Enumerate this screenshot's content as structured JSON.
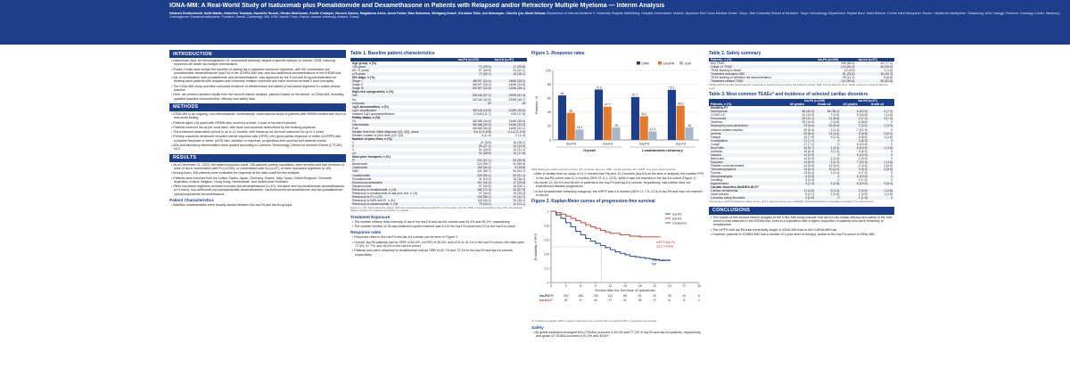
{
  "header": {
    "title": "IONA-MM: A Real-World Study of Isatuximab plus Pomalidomide and Dexamethasone in Patients with Relapsed and/or Refractory Multiple Myeloma — Interim Analysis",
    "authors": "Hartmut Goldschmidt, Sofia Martin, Nobuhiro Tsukada, Kazuhito Suzuki, Hiroko Hashimoto, Emilie Chalayer, Vincent Camus, Magdalena Alexe, Anna Furlan, Max Hubmann, Wolfgang Knauf, Christina Tekle, Ani Mousayan, Chunfu Qiu, Meral Beksac",
    "affiliations": "Department of Internal Medicine V, University Hospital Heidelberg; Hospital Universitario, Madrid; Japanese Red Cross Medical Center, Tokyo; Jikei University School of Medicine, Tokyo; Hematology Department, Hôpital Nord, Saint-Étienne; Centre Henri Becquerel, Rouen; Hôpital de Hautepierre, Strasbourg; AOU Careggi, Florence; Oncology Center, Hamburg; Onkologische Gemeinschaftspraxis, Frankfurt; Sanofi, Cambridge, MA, USA; Sanofi, Paris, France; Ankara University, Ankara, Turkey"
  },
  "intro": {
    "heading": "INTRODUCTION",
    "bullets": [
      "Isatuximab (Isa), an immunoglobulin G1 monoclonal antibody, targets a specific epitope on human CD38, inducing myeloma cell death via multiple mechanisms",
      "Phase 3 trials have shown the benefits of adding Isa to standard backbone regimens, with the combination Isa-pomalidomide-dexamethasone (Isa-Pd) in the ICARIA-MM trial, and Isa-carfilzomib-dexamethasone in the IKEMA trial",
      "Isa, in combination with pomalidomide and dexamethasone, was approved by the Food and Drug Administration for treating adult patients with relapsed and refractory multiple myeloma who have received at least 2 prior therapies",
      "The IONA-MM study provides real-world evidence of effectiveness and safety of Isa-based regimens in routine clinical practice",
      "Here, we present updated results from the second interim analysis, planned based on enrolment, of IONA-MM, including updated baseline characteristics, efficacy and safety data"
    ]
  },
  "methods": {
    "heading": "METHODS",
    "bullets": [
      "IONA-MM is an ongoing, non-interventional, multinational, observational study of patients with RRMM treated with Isa in a real-world setting",
      "Patients aged ≥18 years with RRMM who received at least 1 dose of Isa were included",
      "Patients received Isa as per local label, with dose and schedule determined by the treating physician",
      "The treatment observation period is up to 12 months, with follow-up for survival outcomes for up to 3 years",
      "Primary outcomes measured included overall response rate (ORR), very good partial response or better (≥VGPR) rate, complete response or better (≥CR) rate, duration of response, progression-free survival and adverse events",
      "AEs and laboratory abnormalities were graded according to Common Terminology Criteria for Adverse Events (CTCAE) v5.0"
    ]
  },
  "results": {
    "heading": "RESULTS",
    "bullets": [
      "As of December 31, 2022, the patient inclusion cutoff, 336 patients (safety population) were enrolled and had received ≥1 dose of Isa in combination with Pd (n=239), or combination with Kd (n=57), or other Isa-based regimens (n=40)",
      "Among them, 306 patients were evaluable for response at the data cutoff for this analysis",
      "Patients were enrolled from the United States, Japan, Germany, France, Italy, Spain, United Kingdom, Denmark, Argentina, Austria, Belgium, Hong Kong, Netherlands, and United Arab Emirates",
      "Other Isa-based regimens received included Isa-dexamethasone (n=10), Isa alone and Isa-lenalidomide-dexamethasone (n=9 each), Isa-carfilzomib-cyclophosphamide-dexamethasone, Isa-bortezomib-dexamethasone and Isa-pomalidomide-cyclophosphamide-dexamethasone"
    ],
    "sub": "Patient Characteristics",
    "sub_text": "Baseline characteristics were broadly similar between the Isa-Pd and Isa-Kd groups"
  },
  "table1": {
    "caption": "Table 1. Baseline patient characteristics",
    "headers": [
      "",
      "Isa-Pd (n=239)",
      "Isa-Kd (n=57)"
    ],
    "rows": [
      [
        "Age group, n (%)",
        "",
        ""
      ],
      [
        "<65 years",
        "70 (29.3)",
        "17 (29.8)"
      ],
      [
        "65–74 years",
        "97 (40.6)",
        "24 (42.1)"
      ],
      [
        "≥75 years",
        "72 (30.1)",
        "16 (28.1)"
      ],
      [
        "ISS stage, n (%)",
        "",
        ""
      ],
      [
        "Stage I",
        "48/197 (24.4)",
        "18/46 (39.1)"
      ],
      [
        "Stage II",
        "65/197 (33.0)",
        "16/46 (34.8)"
      ],
      [
        "Stage III",
        "84/197 (42.6)",
        "12/46 (26.1)"
      ],
      [
        "High-risk cytogenetics, n (%)",
        "",
        ""
      ],
      [
        "Yes",
        "83/145 (57.2)",
        "20/39 (51.3)"
      ],
      [
        "No",
        "62/145 (42.8)",
        "19/39 (48.7)"
      ],
      [
        "Unknown",
        "94",
        "18"
      ],
      [
        "1q21 abnormalities, n (%)",
        "",
        ""
      ],
      [
        "1q21 amplification",
        "36/145 (24.8)",
        "10/39 (25.6)"
      ],
      [
        "Isolated 1q21 gain/amplification",
        "17/145 (11.7)",
        "7/39 (17.9)"
      ],
      [
        "Frailty status, n (%)",
        "",
        ""
      ],
      [
        "Fit",
        "65/188 (34.6)",
        "16/45 (35.6)"
      ],
      [
        "Intermediate",
        "58/188 (30.9)",
        "15/45 (33.3)"
      ],
      [
        "Frail",
        "65/188 (34.6)",
        "14/45 (31.1)"
      ],
      [
        "Median time from initial diagnosis (Q1–Q3), years",
        "5.6 (3.4–8.8)",
        "4.1 (2.2–6.9)"
      ],
      [
        "Median number of prior lines (Q1–Q3)",
        "3 (2–4)",
        "2 (1–3)"
      ],
      [
        "Number of prior lines, n (%)",
        "",
        ""
      ],
      [
        "1",
        "21 (8.8)",
        "16 (28.1)"
      ],
      [
        "2",
        "65 (27.2)",
        "19 (33.3)"
      ],
      [
        "3",
        "61 (25.5)",
        "12 (21.1)"
      ],
      [
        "≥4",
        "92 (38.5)",
        "10 (17.5)"
      ],
      [
        "Most prior therapies, n (%)",
        "",
        ""
      ],
      [
        "PI",
        "232 (97.1)",
        "53 (93.0)"
      ],
      [
        "Bortezomib",
        "224 (93.7)",
        "51 (89.5)"
      ],
      [
        "Carfilzomib",
        "106 (44.4)",
        "9 (15.8)"
      ],
      [
        "IMiD",
        "231 (96.7)",
        "54 (94.7)"
      ],
      [
        "Lenalidomide",
        "225 (94.1)",
        "52 (91.2)"
      ],
      [
        "Pomalidomide",
        "31 (13.0)",
        "15 (26.3)"
      ],
      [
        "Monoclonal antibodies",
        "101 (42.3)",
        "17 (29.8)"
      ],
      [
        "Daratumumab",
        "97 (40.6)",
        "16 (28.1)"
      ],
      [
        "Refractory to lenalidomide, n (%)",
        "168 (70.3)",
        "33 (57.9)"
      ],
      [
        "Refractory to lenalidomide at last prior line, n (%)",
        "97 (40.6)",
        "19 (33.3)"
      ],
      [
        "Refractory to PI, n (%)",
        "134 (56.1)",
        "24 (42.1)"
      ],
      [
        "Refractory to IMiD and PI, n (%)",
        "118 (49.4)",
        "20 (35.1)"
      ],
      [
        "Refractory to daratumumab, n (%)",
        "79 (33.1)",
        "12 (21.1)"
      ]
    ],
    "footnote": "Data are n (%) unless otherwise stated. High-risk cytogenetics defined as del(17p), t(4;14) and/or t(14;16). IMiD, immunomodulatory drug; ISS, International Staging System; PI, proteasome inhibitor; Q, quartile."
  },
  "treatment": {
    "heading": "Treatment Exposure",
    "bullets": [
      "The median relative dose intensity of Isa in the Isa-Pd and Isa-Kd cohorts was 94.4% and 96.2%, respectively",
      "The median number of 28-day treatment cycles received was 8.0 in the Isa-Pd cohort and 9.0 in the Isa-Kd cohort"
    ],
    "resp_heading": "Response rates",
    "resp_bullets": [
      "Response rates in the Isa-Pd and Isa-Kd cohorts can be seen in Figure 1",
      "Overall, Isa-Pd patients had an ORR of 64.0%, ≥VGPR of 39.0%, and ≥CR of 15.1% in the Isa-Pd cohort; the rates were 72.5%, 47.7%, and 18.0% in the Isa-Kd cohort",
      "Patients who were refractory to lenalidomide had an ORR of 61.7% and 72.1% in the Isa-Pd and Isa-Kd cohorts, respectively"
    ]
  },
  "figure1": {
    "caption": "Figure 1. Response rates",
    "chart_data": {
      "type": "bar",
      "categories": [
        "Isa-Pd",
        "Isa-Kd",
        "Isa-Pd",
        "Isa-Kd"
      ],
      "groups": [
        "Overall",
        "Lenalidomide-refractory"
      ],
      "series": [
        {
          "name": "ORR",
          "color": "#1d3f8a",
          "values": [
            64.0,
            72.5,
            61.7,
            72.1
          ]
        },
        {
          "name": "≥VGPR",
          "color": "#e37b2e",
          "values": [
            39.0,
            47.7,
            34.1,
            49.2
          ]
        },
        {
          "name": "≥CR",
          "color": "#a9b6c9",
          "values": [
            15.1,
            18.0,
            12.3,
            18.0
          ]
        }
      ],
      "ylabel": "Patients, %",
      "ylim": [
        0,
        100
      ],
      "yticks": [
        0,
        20,
        40,
        60,
        80,
        100
      ]
    },
    "footnote": "ORR defined as partial response or better. CR, complete response; ORR, overall response rate; VGPR, very good partial response."
  },
  "pfs_text": [
    "After a median time on study of 11.2 months (Isa-Pd) and 12.4 months (Isa-Kd) at the time of analysis, the median PFS in the Isa-Pd cohort was 10.2 months (95% CI: 8.1–13.5), while it was not reached in the Isa-Kd cohort (Figure 2)",
    "At month 12, 45.9% and 68.6% of patients in the Isa-Pd and Isa-Kd cohorts, respectively, had neither died nor experienced disease progression",
    "In the lenalidomide-refractory subgroup, the mPFS was 9.6 months (95% CI: 7.5–13.3) in Isa-Pd and was not reached in Isa-Kd"
  ],
  "figure2": {
    "caption": "Figure 2. Kaplan-Meier curves of progression-free survival",
    "legend": [
      "Isa-Pd",
      "Isa-Kd",
      "Censored"
    ],
    "annotations": [
      "mPFS Isa-Pd",
      "10.2 months",
      "mPFS Isa-Kd",
      "NR"
    ],
    "chart_data": {
      "type": "line",
      "xlabel": "Months after the first dose of Isatuximab",
      "ylabel": "Probability of PFS",
      "xlim": [
        0,
        30
      ],
      "ylim": [
        0,
        1
      ],
      "xticks": [
        0,
        3,
        6,
        9,
        12,
        15,
        18,
        21,
        24,
        27,
        30
      ],
      "yticks": [
        0,
        0.2,
        0.4,
        0.6,
        0.8,
        1.0
      ],
      "series": [
        {
          "name": "Isa-Pd",
          "color": "#1d3f8a",
          "x": [
            0,
            1,
            2,
            3,
            4,
            5,
            6,
            7,
            8,
            9,
            10,
            11,
            12,
            13,
            14,
            15,
            16,
            17,
            18,
            19,
            20,
            21,
            22,
            24
          ],
          "y": [
            1,
            0.95,
            0.9,
            0.84,
            0.78,
            0.72,
            0.67,
            0.62,
            0.58,
            0.55,
            0.52,
            0.49,
            0.46,
            0.43,
            0.41,
            0.39,
            0.37,
            0.36,
            0.35,
            0.34,
            0.33,
            0.32,
            0.31,
            0.31
          ]
        },
        {
          "name": "Isa-Kd",
          "color": "#c0392b",
          "x": [
            0,
            1,
            2,
            3,
            4,
            5,
            6,
            7,
            8,
            9,
            10,
            11,
            12,
            14,
            16,
            18,
            20,
            22
          ],
          "y": [
            1,
            0.98,
            0.96,
            0.93,
            0.9,
            0.87,
            0.84,
            0.81,
            0.78,
            0.76,
            0.73,
            0.71,
            0.69,
            0.67,
            0.65,
            0.64,
            0.64,
            0.64
          ]
        }
      ],
      "at_risk": [
        {
          "name": "Isa-Pd",
          "values": [
            "239",
            "200",
            "166",
            "139",
            "111",
            "89",
            "64",
            "43",
            "28",
            "16",
            "6"
          ]
        },
        {
          "name": "Isa-Kd",
          "values": [
            "57",
            "52",
            "47",
            "42",
            "37",
            "31",
            "25",
            "17",
            "11",
            "6",
            "2"
          ]
        }
      ]
    },
    "footnote": "CI, confidence interval; mPFS, median progression-free survival; NR, not reached; PFS, progression-free survival."
  },
  "safety": {
    "heading": "Safety",
    "bullets": [
      "All-grade treatment-emergent AEs (TEAEs) occurred in 83.3% and 77.2% of Isa-Pd and Isa-Kd patients, respectively, and grade ≥3 TEAEs occurred in 51.9% and 45.6%"
    ]
  },
  "table2": {
    "caption": "Table 2. Safety summary",
    "headers": [
      "Patients, n (%)",
      "Isa-Pd (n=239)",
      "Isa-Kd (n=57)"
    ],
    "rows": [
      [
        "Any TEAE",
        "199 (83.3)",
        "44 (77.2)"
      ],
      [
        "Grade ≥3 TEAE",
        "124 (51.9)",
        "26 (45.6)"
      ],
      [
        "TEAE leading to death",
        "12 (5.0)",
        "1 (1.8)"
      ],
      [
        "Treatment-emergent SAE",
        "81 (33.9)",
        "15 (26.3)"
      ],
      [
        "TEAE leading to definitive Isa discontinuation",
        "29 (12.1)",
        "5 (8.8)"
      ],
      [
        "Treatment-related TEAE",
        "142 (59.4)",
        "30 (52.6)"
      ]
    ],
    "footnote": "TEAEs defined as AEs that developed, worsened or became serious during the treatment period. SAE, serious adverse event; TEAE, treatment-emergent adverse event."
  },
  "table3": {
    "caption": "Table 3. Most common TEAEs* and incidence of selected cardiac disorders",
    "group_headers": [
      "",
      "Isa-Pd (n=239)",
      "Isa-Kd (n=57)"
    ],
    "headers": [
      "Patients, n (%)",
      "All grades",
      "Grade ≥3",
      "All grades",
      "Grade ≥3"
    ],
    "rows": [
      [
        "MedDRA PT",
        "",
        "",
        "",
        ""
      ],
      [
        "Neutropenia",
        "96 (40.2)",
        "84 (35.1)",
        "6 (10.5)",
        "4 (7.0)"
      ],
      [
        "COVID-19",
        "31 (13.0)",
        "7 (2.9)",
        "9 (15.8)",
        "1 (1.8)"
      ],
      [
        "Pneumonia",
        "29 (12.1)",
        "21 (8.8)",
        "4 (7.0)",
        "4 (7.0)"
      ],
      [
        "Diarrhea",
        "25 (10.5)",
        "2 (0.8)",
        "5 (8.8)",
        "0"
      ],
      [
        "Neutrophil count decreased",
        "23 (9.6)",
        "20 (8.4)",
        "2 (3.5)",
        "2 (3.5)"
      ],
      [
        "Infusion-related reaction",
        "20 (8.4)",
        "3 (1.3)",
        "7 (12.3)",
        "0"
      ],
      [
        "Anemia",
        "20 (8.4)",
        "11 (4.6)",
        "5 (8.8)",
        "3 (5.3)"
      ],
      [
        "Fatigue",
        "19 (7.9)",
        "3 (1.3)",
        "5 (8.8)",
        "1 (1.8)"
      ],
      [
        "Constipation",
        "17 (7.1)",
        "0",
        "3 (5.3)",
        "0"
      ],
      [
        "Cough",
        "17 (7.1)",
        "0",
        "6 (10.5)",
        "0"
      ],
      [
        "Bronchitis",
        "16 (6.7)",
        "1 (0.4)",
        "6 (10.5)",
        "1 (1.8)"
      ],
      [
        "Asthenia",
        "15 (6.3)",
        "3 (1.3)",
        "3 (5.3)",
        "0"
      ],
      [
        "Nausea",
        "14 (5.9)",
        "0",
        "6 (10.5)",
        "0"
      ],
      [
        "Back pain",
        "14 (5.9)",
        "1 (0.4)",
        "2 (3.5)",
        "0"
      ],
      [
        "Dyspnea",
        "14 (5.9)",
        "3 (1.3)",
        "7 (12.3)",
        "1 (1.8)"
      ],
      [
        "Platelet count decreased",
        "14 (5.9)",
        "12 (5.0)",
        "2 (3.5)",
        "2 (3.5)"
      ],
      [
        "Thrombocytopenia",
        "13 (5.4)",
        "10 (4.2)",
        "3 (5.3)",
        "2 (3.5)"
      ],
      [
        "Pyrexia",
        "13 (5.4)",
        "1 (0.4)",
        "4 (7.0)",
        "0"
      ],
      [
        "Nasopharyngitis",
        "6 (2.5)",
        "0",
        "6 (10.5)",
        "0"
      ],
      [
        "Vomiting",
        "8 (3.3)",
        "0",
        "4 (7.0)",
        "0"
      ],
      [
        "Hypertension",
        "3 (1.3)",
        "2 (0.8)",
        "6 (10.5)",
        "3 (5.3)"
      ],
      [
        "Cardiac disorders MedDRA HLGT",
        "",
        "",
        "",
        ""
      ],
      [
        "Cardiac arrhythmias",
        "11 (4.6)",
        "3 (1.3)",
        "2 (3.5)",
        "1 (1.8)"
      ],
      [
        "Heart failures",
        "5 (2.1)",
        "2 (0.8)",
        "2 (3.5)",
        "1 (1.8)"
      ],
      [
        "Coronary artery disorders",
        "2 (0.8)",
        "0",
        "1 (1.8)",
        "0"
      ]
    ],
    "footnote": "*Occurring in ≥10% of patients in either cohort. HLGT, high-level group term; MedDRA, Medical Dictionary for Regulatory Activities; PT, preferred term."
  },
  "conclusions": {
    "heading": "CONCLUSIONS",
    "bullets": [
      "The results of this second interim analysis of the IONA-MM study indicate that Isa-Kd has similar efficacy and safety in the real world to that observed in the IKEMA trial, even in a population with a higher proportion of patients who were refractory to lenalidomide",
      "The mPFS with Isa-Pd was numerically longer in IONA-MM than in the ICARIA-MM trial",
      "However, patients in ICARIA-MM had a median of 3 prior lines of therapy, similar to the Isa-Pd cohort of IONA-MM"
    ]
  }
}
